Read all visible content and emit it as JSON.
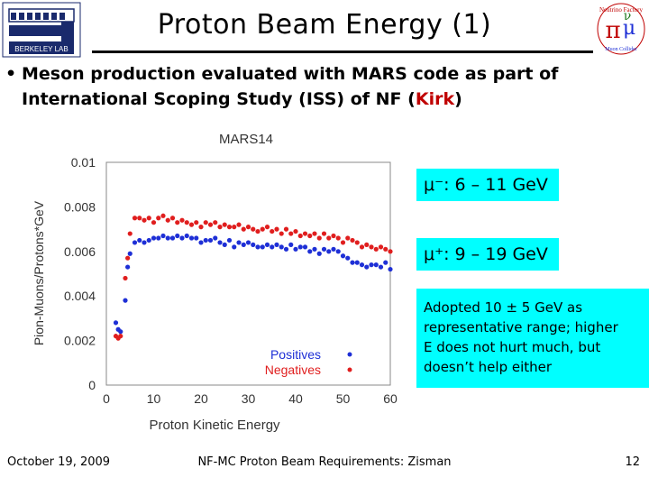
{
  "header": {
    "title": "Proton Beam Energy (1)",
    "left_logo_text": "BERKELEY LAB",
    "right_logo_text": [
      "Neutrino Factory",
      "Muon Collider"
    ]
  },
  "bullet": {
    "line1": "Meson production evaluated with MARS code as part of",
    "line2_prefix": "International Scoping Study (ISS) of NF (",
    "line2_highlight": "Kirk",
    "line2_suffix": ")"
  },
  "chart_data": {
    "type": "scatter",
    "title": "MARS14",
    "xlabel": "Proton Kinetic Energy",
    "ylabel": "Pion-Muons/Protons*GeV",
    "xlim": [
      0,
      60
    ],
    "ylim": [
      0,
      0.01
    ],
    "x_ticks": [
      "0",
      "10",
      "20",
      "30",
      "40",
      "50",
      "60"
    ],
    "y_ticks": [
      "0",
      "0.002",
      "0.004",
      "0.006",
      "0.008",
      "0.01"
    ],
    "legend_placement": "bottom-right",
    "series": [
      {
        "name": "Positives",
        "color": "#1e2fd6",
        "points": [
          [
            2,
            0.0028
          ],
          [
            2.5,
            0.0025
          ],
          [
            3,
            0.0024
          ],
          [
            4,
            0.0038
          ],
          [
            4.5,
            0.0053
          ],
          [
            5,
            0.0059
          ],
          [
            6,
            0.0064
          ],
          [
            7,
            0.0065
          ],
          [
            8,
            0.0064
          ],
          [
            9,
            0.0065
          ],
          [
            10,
            0.0066
          ],
          [
            11,
            0.0066
          ],
          [
            12,
            0.0067
          ],
          [
            13,
            0.0066
          ],
          [
            14,
            0.0066
          ],
          [
            15,
            0.0067
          ],
          [
            16,
            0.0066
          ],
          [
            17,
            0.0067
          ],
          [
            18,
            0.0066
          ],
          [
            19,
            0.0066
          ],
          [
            20,
            0.0064
          ],
          [
            21,
            0.0065
          ],
          [
            22,
            0.0065
          ],
          [
            23,
            0.0066
          ],
          [
            24,
            0.0064
          ],
          [
            25,
            0.0063
          ],
          [
            26,
            0.0065
          ],
          [
            27,
            0.0062
          ],
          [
            28,
            0.0064
          ],
          [
            29,
            0.0063
          ],
          [
            30,
            0.0064
          ],
          [
            31,
            0.0063
          ],
          [
            32,
            0.0062
          ],
          [
            33,
            0.0062
          ],
          [
            34,
            0.0063
          ],
          [
            35,
            0.0062
          ],
          [
            36,
            0.0063
          ],
          [
            37,
            0.0062
          ],
          [
            38,
            0.0061
          ],
          [
            39,
            0.0063
          ],
          [
            40,
            0.0061
          ],
          [
            41,
            0.0062
          ],
          [
            42,
            0.0062
          ],
          [
            43,
            0.006
          ],
          [
            44,
            0.0061
          ],
          [
            45,
            0.0059
          ],
          [
            46,
            0.0061
          ],
          [
            47,
            0.006
          ],
          [
            48,
            0.0061
          ],
          [
            49,
            0.006
          ],
          [
            50,
            0.0058
          ],
          [
            51,
            0.0057
          ],
          [
            52,
            0.0055
          ],
          [
            53,
            0.0055
          ],
          [
            54,
            0.0054
          ],
          [
            55,
            0.0053
          ],
          [
            56,
            0.0054
          ],
          [
            57,
            0.0054
          ],
          [
            58,
            0.0053
          ],
          [
            59,
            0.0055
          ],
          [
            60,
            0.0052
          ]
        ]
      },
      {
        "name": "Negatives",
        "color": "#e01e1e",
        "points": [
          [
            2,
            0.0022
          ],
          [
            2.5,
            0.0021
          ],
          [
            3,
            0.0022
          ],
          [
            4,
            0.0048
          ],
          [
            4.5,
            0.0057
          ],
          [
            5,
            0.0068
          ],
          [
            6,
            0.0075
          ],
          [
            7,
            0.0075
          ],
          [
            8,
            0.0074
          ],
          [
            9,
            0.0075
          ],
          [
            10,
            0.0073
          ],
          [
            11,
            0.0075
          ],
          [
            12,
            0.0076
          ],
          [
            13,
            0.0074
          ],
          [
            14,
            0.0075
          ],
          [
            15,
            0.0073
          ],
          [
            16,
            0.0074
          ],
          [
            17,
            0.0073
          ],
          [
            18,
            0.0072
          ],
          [
            19,
            0.0073
          ],
          [
            20,
            0.0071
          ],
          [
            21,
            0.0073
          ],
          [
            22,
            0.0072
          ],
          [
            23,
            0.0073
          ],
          [
            24,
            0.0071
          ],
          [
            25,
            0.0072
          ],
          [
            26,
            0.0071
          ],
          [
            27,
            0.0071
          ],
          [
            28,
            0.0072
          ],
          [
            29,
            0.007
          ],
          [
            30,
            0.0071
          ],
          [
            31,
            0.007
          ],
          [
            32,
            0.0069
          ],
          [
            33,
            0.007
          ],
          [
            34,
            0.0071
          ],
          [
            35,
            0.0069
          ],
          [
            36,
            0.007
          ],
          [
            37,
            0.0068
          ],
          [
            38,
            0.007
          ],
          [
            39,
            0.0068
          ],
          [
            40,
            0.0069
          ],
          [
            41,
            0.0067
          ],
          [
            42,
            0.0068
          ],
          [
            43,
            0.0067
          ],
          [
            44,
            0.0068
          ],
          [
            45,
            0.0066
          ],
          [
            46,
            0.0068
          ],
          [
            47,
            0.0066
          ],
          [
            48,
            0.0067
          ],
          [
            49,
            0.0066
          ],
          [
            50,
            0.0064
          ],
          [
            51,
            0.0066
          ],
          [
            52,
            0.0065
          ],
          [
            53,
            0.0064
          ],
          [
            54,
            0.0062
          ],
          [
            55,
            0.0063
          ],
          [
            56,
            0.0062
          ],
          [
            57,
            0.0061
          ],
          [
            58,
            0.0062
          ],
          [
            59,
            0.0061
          ],
          [
            60,
            0.006
          ]
        ]
      }
    ]
  },
  "callouts": {
    "mu_minus": "μ⁻: 6 – 11 GeV",
    "mu_plus": "μ⁺: 9 – 19 GeV",
    "note_lines": [
      "Adopted 10 ± 5 GeV as",
      "representative range; higher",
      "E does not hurt much, but",
      "doesn’t help either"
    ]
  },
  "footer": {
    "date": "October 19, 2009",
    "center": "NF-MC Proton Beam Requirements: Zisman",
    "page": "12"
  }
}
